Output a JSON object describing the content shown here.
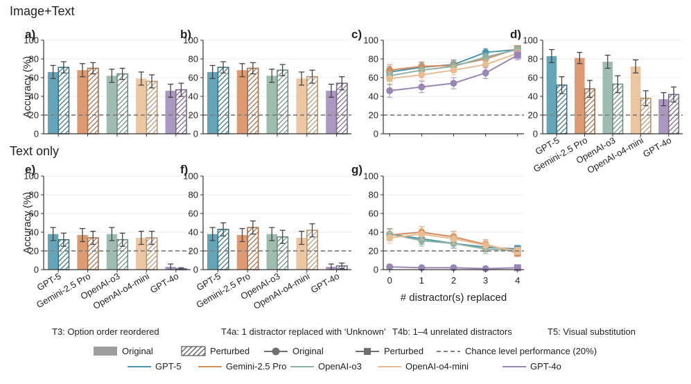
{
  "sections": {
    "top": "Image+Text",
    "bottom": "Text only"
  },
  "panel_labels": [
    "a)",
    "b)",
    "c)",
    "d)",
    "e)",
    "f)",
    "g)"
  ],
  "captions": [
    "T3: Option order reordered",
    "T4a: 1 distractor replaced with ‘Unknown’",
    "T4b: 1–4 unrelated distractors",
    "T5: Visual substitution"
  ],
  "legend": {
    "row1": [
      "Original",
      "Perturbed",
      "Original",
      "Perturbed",
      "Chance level performance (20%)"
    ],
    "row2": [
      "GPT-5",
      "Gemini-2.5 Pro",
      "OpenAI-o3",
      "OpenAI-o4-mini",
      "GPT-4o"
    ]
  },
  "colors": {
    "GPT-5": "#4b94ac",
    "Gemini-2.5 Pro": "#d78a5c",
    "OpenAI-o3": "#8db2a2",
    "OpenAI-o4-mini": "#e8bd93",
    "GPT-4o": "#9a86b5",
    "chance": "#808080"
  },
  "chart_data": [
    {
      "id": "a",
      "type": "bar",
      "ylabel": "Accuracy (%)",
      "ylim": [
        0,
        100
      ],
      "yticks": [
        0,
        20,
        40,
        60,
        80,
        100
      ],
      "chance_level": 20,
      "categories": [
        "GPT-5",
        "Gemini-2.5 Pro",
        "OpenAI-o3",
        "OpenAI-o4-mini",
        "GPT-4o"
      ],
      "series": [
        {
          "name": "Original",
          "values": [
            66,
            68,
            62,
            59,
            46
          ],
          "err": [
            7,
            7,
            7,
            7,
            7
          ]
        },
        {
          "name": "Perturbed",
          "values": [
            71,
            70,
            64,
            56,
            47
          ],
          "err": [
            6,
            6,
            6,
            7,
            7
          ]
        }
      ]
    },
    {
      "id": "b",
      "type": "bar",
      "ylabel": "",
      "ylim": [
        0,
        100
      ],
      "yticks": [
        0,
        20,
        40,
        60,
        80,
        100
      ],
      "chance_level": 20,
      "categories": [
        "GPT-5",
        "Gemini-2.5 Pro",
        "OpenAI-o3",
        "OpenAI-o4-mini",
        "GPT-4o"
      ],
      "series": [
        {
          "name": "Original",
          "values": [
            66,
            68,
            62,
            59,
            46
          ],
          "err": [
            7,
            7,
            7,
            7,
            7
          ]
        },
        {
          "name": "Perturbed",
          "values": [
            71,
            70,
            68,
            61,
            54
          ],
          "err": [
            6,
            6,
            6,
            7,
            7
          ]
        }
      ]
    },
    {
      "id": "c",
      "type": "line",
      "ylabel": "",
      "ylim": [
        0,
        100
      ],
      "yticks": [
        0,
        20,
        40,
        60,
        80,
        100
      ],
      "chance_level": 20,
      "x": [
        0,
        1,
        2,
        3,
        4
      ],
      "series": [
        {
          "name": "GPT-5",
          "values": [
            66,
            71,
            74,
            87,
            90
          ],
          "err": [
            6,
            5,
            5,
            4,
            3
          ]
        },
        {
          "name": "Gemini-2.5 Pro",
          "values": [
            68,
            72,
            73,
            80,
            91
          ],
          "err": [
            6,
            5,
            5,
            4,
            3
          ]
        },
        {
          "name": "OpenAI-o3",
          "values": [
            62,
            68,
            72,
            82,
            90
          ],
          "err": [
            6,
            5,
            5,
            4,
            3
          ]
        },
        {
          "name": "OpenAI-o4-mini",
          "values": [
            59,
            63,
            68,
            74,
            86
          ],
          "err": [
            7,
            6,
            5,
            5,
            4
          ]
        },
        {
          "name": "GPT-4o",
          "values": [
            46,
            50,
            54,
            65,
            84
          ],
          "err": [
            7,
            6,
            6,
            6,
            5
          ]
        }
      ]
    },
    {
      "id": "d",
      "type": "bar",
      "ylabel": "",
      "ylim": [
        0,
        100
      ],
      "yticks": [
        0,
        20,
        40,
        60,
        80,
        100
      ],
      "chance_level": 20,
      "categories": [
        "GPT-5",
        "Gemini-2.5 Pro",
        "OpenAI-o3",
        "OpenAI-o4-mini",
        "GPT-4o"
      ],
      "series": [
        {
          "name": "Original",
          "values": [
            83,
            81,
            77,
            72,
            37
          ],
          "err": [
            7,
            6,
            7,
            7,
            7
          ]
        },
        {
          "name": "Perturbed",
          "values": [
            52,
            48,
            53,
            38,
            42
          ],
          "err": [
            9,
            9,
            9,
            8,
            8
          ]
        }
      ]
    },
    {
      "id": "e",
      "type": "bar",
      "ylabel": "Accuracy (%)",
      "ylim": [
        0,
        100
      ],
      "yticks": [
        0,
        20,
        40,
        60,
        80,
        100
      ],
      "chance_level": 20,
      "categories": [
        "GPT-5",
        "Gemini-2.5 Pro",
        "OpenAI-o3",
        "OpenAI-o4-mini",
        "GPT-4o"
      ],
      "series": [
        {
          "name": "Original",
          "values": [
            38,
            37,
            38,
            34,
            3
          ],
          "err": [
            7,
            7,
            7,
            7,
            3
          ]
        },
        {
          "name": "Perturbed",
          "values": [
            32,
            34,
            32,
            34,
            1
          ],
          "err": [
            7,
            7,
            7,
            7,
            1
          ]
        }
      ]
    },
    {
      "id": "f",
      "type": "bar",
      "ylabel": "",
      "ylim": [
        0,
        100
      ],
      "yticks": [
        0,
        20,
        40,
        60,
        80,
        100
      ],
      "chance_level": 20,
      "categories": [
        "GPT-5",
        "Gemini-2.5 Pro",
        "OpenAI-o3",
        "OpenAI-o4-mini",
        "GPT-4o"
      ],
      "series": [
        {
          "name": "Original",
          "values": [
            38,
            37,
            38,
            34,
            3
          ],
          "err": [
            7,
            7,
            7,
            7,
            3
          ]
        },
        {
          "name": "Perturbed",
          "values": [
            43,
            45,
            35,
            42,
            4
          ],
          "err": [
            7,
            7,
            7,
            7,
            3
          ]
        }
      ]
    },
    {
      "id": "g",
      "type": "line",
      "ylabel": "",
      "xlabel": "# distractor(s) replaced",
      "ylim": [
        0,
        100
      ],
      "yticks": [
        0,
        20,
        40,
        60,
        80,
        100
      ],
      "chance_level": 20,
      "x": [
        0,
        1,
        2,
        3,
        4
      ],
      "series": [
        {
          "name": "GPT-5",
          "values": [
            38,
            33,
            28,
            24,
            22
          ],
          "err": [
            6,
            6,
            5,
            5,
            4
          ]
        },
        {
          "name": "Gemini-2.5 Pro",
          "values": [
            37,
            40,
            35,
            27,
            18
          ],
          "err": [
            6,
            6,
            6,
            5,
            4
          ]
        },
        {
          "name": "OpenAI-o3",
          "values": [
            38,
            31,
            28,
            22,
            20
          ],
          "err": [
            6,
            6,
            5,
            5,
            4
          ]
        },
        {
          "name": "OpenAI-o4-mini",
          "values": [
            34,
            38,
            33,
            26,
            20
          ],
          "err": [
            6,
            6,
            6,
            5,
            4
          ]
        },
        {
          "name": "GPT-4o",
          "values": [
            3,
            2,
            2,
            1,
            2
          ],
          "err": [
            2,
            2,
            2,
            1,
            2
          ]
        }
      ]
    }
  ]
}
